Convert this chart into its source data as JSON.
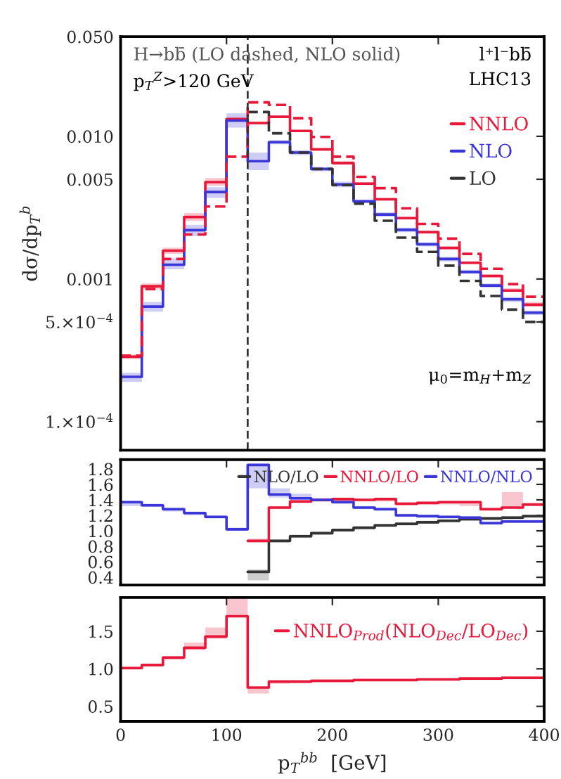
{
  "chart_data": [
    {
      "type": "step",
      "x": [
        0,
        20,
        40,
        60,
        80,
        100,
        120,
        140,
        160,
        180,
        200,
        220,
        240,
        260,
        280,
        300,
        320,
        340,
        360,
        380,
        400
      ],
      "ylabel": "dσ/dp$_{T}$$^{b}$",
      "log": true,
      "xlim": [
        0,
        400
      ],
      "ylim": [
        6.3e-05,
        0.05
      ],
      "xticks": [
        0,
        100,
        200,
        300,
        400
      ],
      "yticks": [
        {
          "value": 0.05,
          "label": "0.050"
        },
        {
          "value": 0.01,
          "label": "0.010"
        },
        {
          "value": 0.005,
          "label": "0.005"
        },
        {
          "value": 0.001,
          "label": "0.001"
        },
        {
          "value": 0.0005,
          "label": "5.×10$^{−4}$"
        },
        {
          "value": 0.0001,
          "label": "1.×10$^{−4}$"
        }
      ],
      "tick_labels": "y",
      "legend": "right",
      "annotations": [
        "H→bb̄ (LO dashed, NLO solid)",
        "p$_{T}$$^{Z}$>120 GeV",
        "l⁺l⁻bb̄",
        "LHC13",
        "μ$_{0}$=m$_{H}$+m$_{Z}$"
      ],
      "ref_lines": [
        {
          "axis": "x",
          "value": 120,
          "color": "#333333",
          "line_style": "dashed"
        }
      ],
      "series": [
        {
          "name": "NNLO",
          "color": "#e8183a",
          "line_style": "solid",
          "values": [
            0.000285,
            0.00089,
            0.00158,
            0.00272,
            0.00478,
            0.0132,
            0.0124,
            0.0137,
            0.0109,
            0.0081,
            0.0065,
            0.00466,
            0.00362,
            0.00267,
            0.00213,
            0.00165,
            0.0013,
            0.00105,
            0.00083,
            0.00066,
            0.00066
          ],
          "lower": [
            0.000275,
            0.00085,
            0.0015,
            0.00255,
            0.0045,
            0.0127,
            0.0121,
            0.0134,
            0.0107,
            0.0079,
            0.0063,
            0.00455,
            0.00355,
            0.00261,
            0.00208,
            0.00161,
            0.00127,
            0.00102,
            0.00081,
            0.00064,
            0.00064
          ],
          "upper": [
            0.000295,
            0.00093,
            0.00166,
            0.0029,
            0.0051,
            0.0137,
            0.0127,
            0.014,
            0.0111,
            0.0083,
            0.0067,
            0.00478,
            0.0037,
            0.00273,
            0.00218,
            0.00169,
            0.00133,
            0.00108,
            0.00086,
            0.00069,
            0.00069
          ]
        },
        {
          "name": "NLO",
          "color": "#3a36d8",
          "line_style": "solid",
          "values": [
            0.000206,
            0.00064,
            0.00126,
            0.0022,
            0.00407,
            0.0129,
            0.0067,
            0.0091,
            0.0077,
            0.0059,
            0.0046,
            0.0035,
            0.00283,
            0.00221,
            0.00175,
            0.00138,
            0.00112,
            0.0009,
            0.00072,
            0.00058,
            0.00058
          ],
          "lower": [
            0.00019,
            0.00059,
            0.00117,
            0.002,
            0.0037,
            0.0115,
            0.0058,
            0.0088,
            0.0074,
            0.0057,
            0.0044,
            0.0034,
            0.00273,
            0.00213,
            0.00169,
            0.00133,
            0.00108,
            0.00087,
            0.00069,
            0.00056,
            0.00056
          ],
          "upper": [
            0.00022,
            0.00069,
            0.0014,
            0.0024,
            0.0044,
            0.0145,
            0.0077,
            0.0094,
            0.008,
            0.0061,
            0.0048,
            0.0036,
            0.00293,
            0.00229,
            0.00181,
            0.00143,
            0.00116,
            0.00093,
            0.00075,
            0.0006,
            0.0006
          ]
        },
        {
          "name": "LO",
          "color": "#333333",
          "line_style": "dashed",
          "values": [
            null,
            null,
            null,
            null,
            null,
            null,
            0.0148,
            0.0105,
            0.0077,
            0.0059,
            0.00455,
            0.00337,
            0.00256,
            0.00195,
            0.00155,
            0.00124,
            0.00097,
            0.00076,
            0.00061,
            0.0005,
            0.0005
          ]
        },
        {
          "color": "#e8183a",
          "line_style": "dashed",
          "values": [
            0.00029,
            0.00085,
            0.00138,
            0.00205,
            0.00322,
            0.0072,
            0.0173,
            0.0166,
            0.0134,
            0.0099,
            0.0072,
            0.0052,
            0.00433,
            0.00313,
            0.00243,
            0.00192,
            0.0015,
            0.00118,
            0.00092,
            0.00075,
            0.00075
          ]
        }
      ]
    },
    {
      "type": "step",
      "x": [
        0,
        20,
        40,
        60,
        80,
        100,
        120,
        140,
        160,
        180,
        200,
        220,
        240,
        260,
        280,
        300,
        320,
        340,
        360,
        380,
        400
      ],
      "xlim": [
        0,
        400
      ],
      "ylim": [
        0.3,
        1.92
      ],
      "xticks": [
        0,
        100,
        200,
        300,
        400
      ],
      "yticks": [
        {
          "value": 0.4,
          "label": "0.4"
        },
        {
          "value": 0.6,
          "label": "0.6"
        },
        {
          "value": 0.8,
          "label": "0.8"
        },
        {
          "value": 1.0,
          "label": "1.0"
        },
        {
          "value": 1.2,
          "label": "1.2"
        },
        {
          "value": 1.4,
          "label": "1.4"
        },
        {
          "value": 1.6,
          "label": "1.6"
        },
        {
          "value": 1.8,
          "label": "1.8"
        }
      ],
      "tick_labels": "y",
      "legend": "top right",
      "series": [
        {
          "name": "NLO/LO",
          "color": "#333333",
          "line_style": "solid",
          "values": [
            null,
            null,
            null,
            null,
            null,
            null,
            0.47,
            0.87,
            0.93,
            0.97,
            1.01,
            1.04,
            1.07,
            1.09,
            1.11,
            1.13,
            1.15,
            1.16,
            1.17,
            1.19,
            1.19
          ],
          "lower": [
            null,
            null,
            null,
            null,
            null,
            null,
            0.36,
            0.85,
            0.91,
            0.95,
            0.99,
            1.02,
            1.05,
            1.07,
            1.09,
            1.11,
            1.13,
            1.14,
            1.15,
            1.17,
            1.17
          ],
          "upper": [
            null,
            null,
            null,
            null,
            null,
            null,
            0.5,
            0.89,
            0.95,
            0.99,
            1.03,
            1.06,
            1.09,
            1.11,
            1.13,
            1.15,
            1.17,
            1.18,
            1.19,
            1.21,
            1.21
          ]
        },
        {
          "name": "NNLO/LO",
          "color": "#e8183a",
          "line_style": "solid",
          "values": [
            null,
            null,
            null,
            null,
            null,
            null,
            0.87,
            1.3,
            1.38,
            1.4,
            1.41,
            1.4,
            1.41,
            1.35,
            1.36,
            1.37,
            1.37,
            1.28,
            1.3,
            1.34,
            1.34
          ],
          "lower": [
            null,
            null,
            null,
            null,
            null,
            null,
            0.85,
            1.28,
            1.36,
            1.38,
            1.38,
            1.38,
            1.38,
            1.33,
            1.34,
            1.34,
            1.32,
            1.26,
            1.3,
            1.32,
            1.32
          ],
          "upper": [
            null,
            null,
            null,
            null,
            null,
            null,
            0.9,
            1.32,
            1.4,
            1.42,
            1.43,
            1.42,
            1.43,
            1.37,
            1.38,
            1.39,
            1.39,
            1.3,
            1.5,
            1.36,
            1.36
          ]
        },
        {
          "name": "NNLO/NLO",
          "color": "#3a36d8",
          "line_style": "solid",
          "values": [
            1.37,
            1.33,
            1.28,
            1.23,
            1.18,
            1.02,
            1.85,
            1.47,
            1.42,
            1.4,
            1.37,
            1.3,
            1.28,
            1.2,
            1.19,
            1.18,
            1.17,
            1.1,
            1.12,
            1.12,
            1.12
          ],
          "lower": [
            1.32,
            1.31,
            1.25,
            1.2,
            1.16,
            1.0,
            1.55,
            1.43,
            1.4,
            1.38,
            1.35,
            1.28,
            1.26,
            1.18,
            1.17,
            1.16,
            1.15,
            1.08,
            1.1,
            1.1,
            1.1
          ],
          "upper": [
            1.39,
            1.35,
            1.3,
            1.25,
            1.2,
            1.04,
            1.87,
            1.55,
            1.48,
            1.42,
            1.39,
            1.32,
            1.3,
            1.22,
            1.21,
            1.2,
            1.19,
            1.12,
            1.14,
            1.14,
            1.14
          ]
        }
      ]
    },
    {
      "type": "step",
      "x": [
        0,
        20,
        40,
        60,
        80,
        100,
        120,
        140,
        160,
        180,
        200,
        220,
        240,
        260,
        280,
        300,
        320,
        340,
        360,
        380,
        400
      ],
      "xlabel": "p$_{T}$$^{bb}$  [GeV]",
      "xlim": [
        0,
        400
      ],
      "ylim": [
        0.3,
        1.95
      ],
      "xticks": [
        0,
        100,
        200,
        300,
        400
      ],
      "yticks": [
        {
          "value": 0.5,
          "label": "0.5"
        },
        {
          "value": 1.0,
          "label": "1.0"
        },
        {
          "value": 1.5,
          "label": "1.5"
        }
      ],
      "legend": "right",
      "series": [
        {
          "name": "NNLO$_{Prod}$(NLO$_{Dec}$/LO$_{Dec}$)",
          "color": "#e8183a",
          "line_style": "solid",
          "values": [
            1.01,
            1.05,
            1.15,
            1.28,
            1.43,
            1.7,
            0.75,
            0.83,
            0.83,
            0.84,
            0.84,
            0.85,
            0.85,
            0.85,
            0.86,
            0.86,
            0.87,
            0.87,
            0.88,
            0.88,
            0.88
          ],
          "lower": [
            0.99,
            1.03,
            1.12,
            1.25,
            1.4,
            1.7,
            0.67,
            0.8,
            0.81,
            0.82,
            0.82,
            0.83,
            0.83,
            0.83,
            0.84,
            0.84,
            0.85,
            0.85,
            0.86,
            0.86,
            0.86
          ],
          "upper": [
            1.03,
            1.07,
            1.17,
            1.35,
            1.55,
            1.95,
            0.75,
            0.84,
            0.84,
            0.85,
            0.85,
            0.86,
            0.86,
            0.86,
            0.87,
            0.87,
            0.88,
            0.88,
            0.89,
            0.89,
            0.89
          ]
        }
      ]
    }
  ]
}
